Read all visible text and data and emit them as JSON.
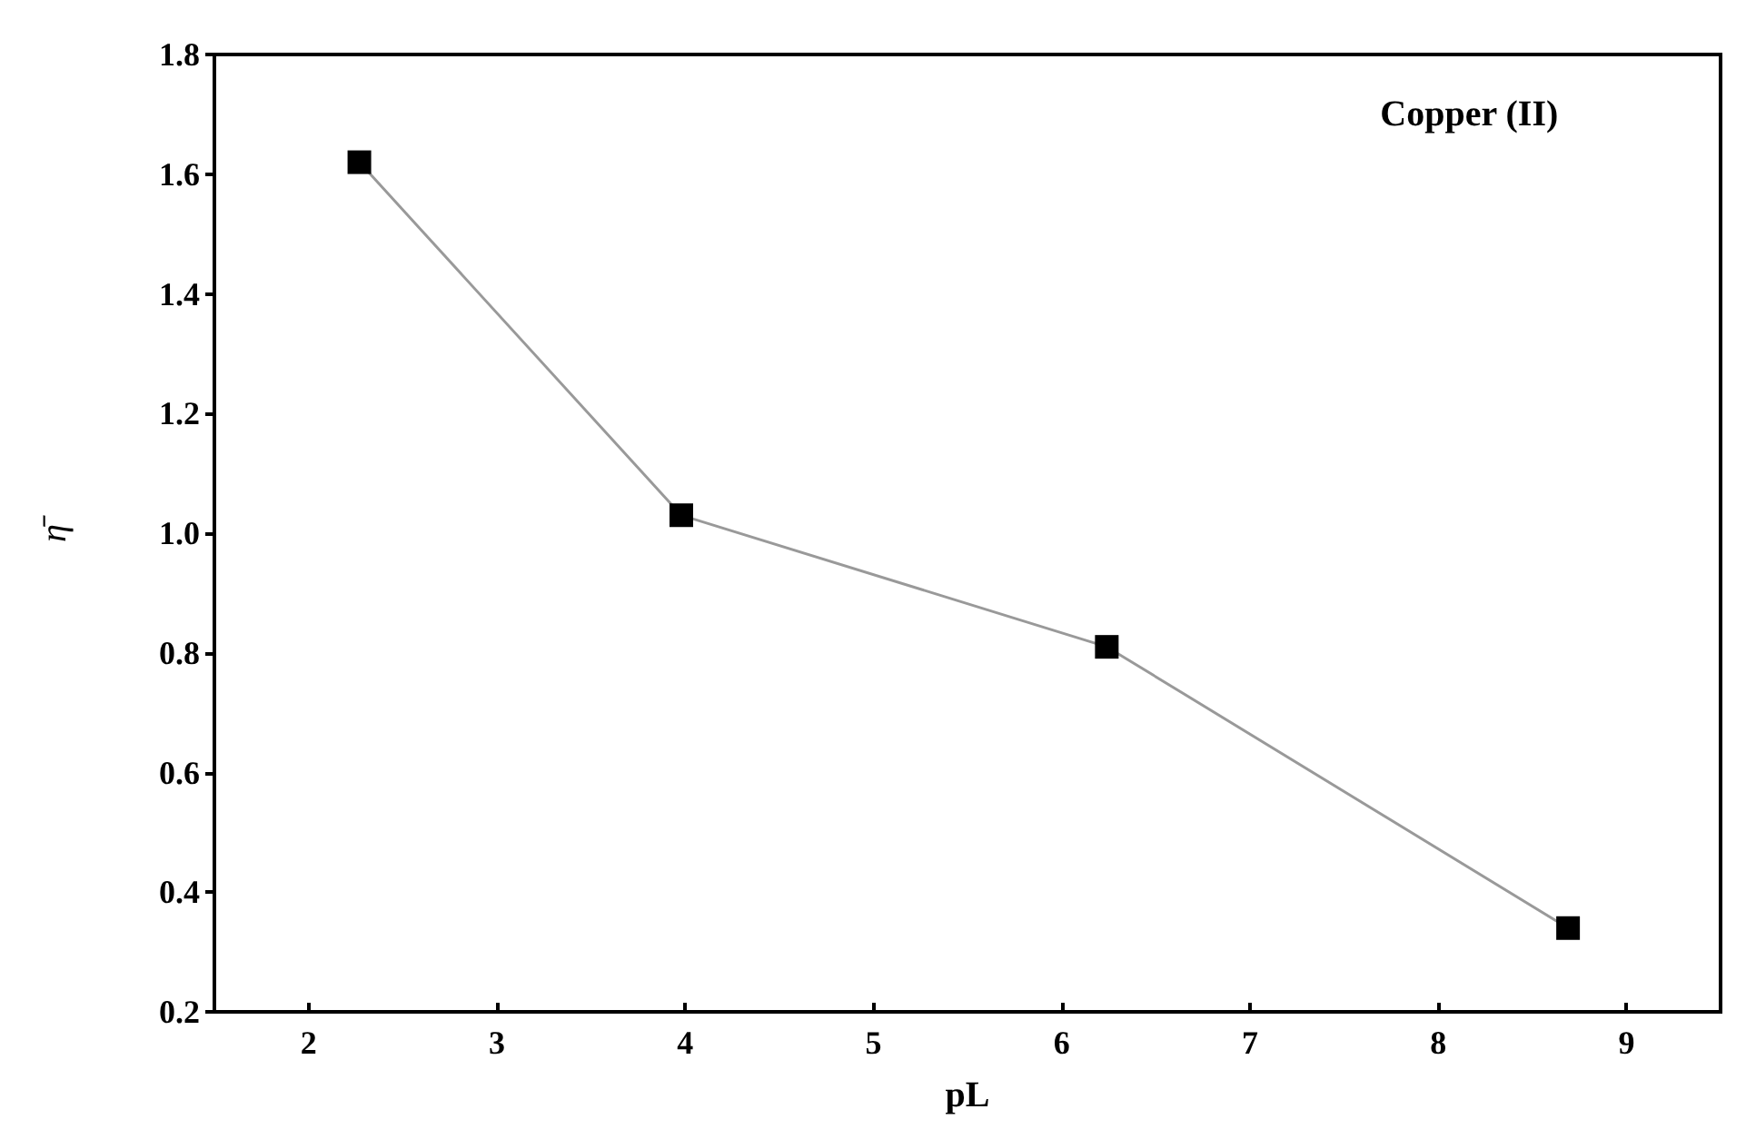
{
  "chart_data": {
    "type": "line",
    "xlabel": "pL",
    "ylabel": "η̄",
    "annotations": [
      "Copper (II)"
    ],
    "x": [
      2.27,
      3.98,
      6.24,
      8.69
    ],
    "series": [
      {
        "color": "#000000",
        "values": [
          1.62,
          1.03,
          0.81,
          0.34
        ]
      }
    ],
    "xlim": [
      1.5,
      9.5
    ],
    "xticks": [
      2,
      3,
      4,
      5,
      6,
      7,
      8,
      9
    ],
    "ylim": [
      0.2,
      1.8
    ],
    "yticks": [
      0.2,
      0.4,
      0.6,
      0.8,
      {
        "value": 1,
        "label": "1.0"
      },
      1.2,
      1.4,
      1.6,
      1.8
    ],
    "grid": false,
    "marker": "square",
    "line_style": "solid"
  }
}
